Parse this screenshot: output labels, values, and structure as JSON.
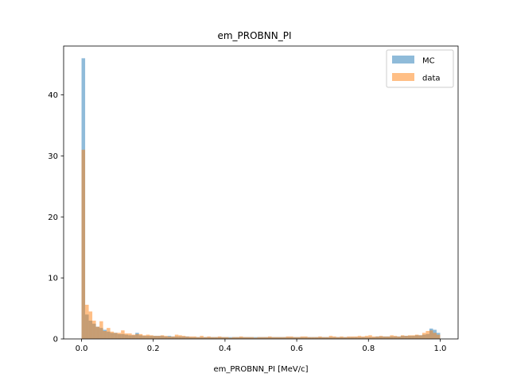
{
  "chart_data": {
    "type": "histogram",
    "title": "em_PROBNN_PI",
    "xlabel": "em_PROBNN_PI [MeV/c]",
    "ylabel": "",
    "xlim": [
      -0.05,
      1.05
    ],
    "ylim": [
      0,
      48
    ],
    "xticks": [
      0.0,
      0.2,
      0.4,
      0.6,
      0.8,
      1.0
    ],
    "xtick_labels": [
      "0.0",
      "0.2",
      "0.4",
      "0.6",
      "0.8",
      "1.0"
    ],
    "yticks": [
      0,
      10,
      20,
      30,
      40
    ],
    "ytick_labels": [
      "0",
      "10",
      "20",
      "30",
      "40"
    ],
    "bin_start": 0.0,
    "bin_width": 0.01,
    "grid": false,
    "legend_position": "upper right",
    "series": [
      {
        "name": "MC",
        "color": "#1f77b4",
        "alpha": 0.5,
        "values": [
          46,
          4.0,
          3.0,
          2.5,
          2.0,
          1.8,
          1.5,
          1.2,
          1.0,
          1.0,
          0.8,
          0.8,
          0.7,
          0.6,
          0.6,
          1.0,
          0.6,
          0.5,
          0.5,
          0.5,
          0.5,
          0.5,
          0.5,
          0.4,
          0.5,
          0.4,
          0.4,
          0.4,
          0.4,
          0.4,
          0.3,
          0.3,
          0.3,
          0.3,
          0.3,
          0.3,
          0.3,
          0.3,
          0.3,
          0.3,
          0.3,
          0.3,
          0.3,
          0.3,
          0.3,
          0.3,
          0.3,
          0.3,
          0.3,
          0.3,
          0.3,
          0.3,
          0.3,
          0.3,
          0.3,
          0.3,
          0.3,
          0.3,
          0.3,
          0.3,
          0.3,
          0.3,
          0.3,
          0.3,
          0.3,
          0.3,
          0.3,
          0.3,
          0.3,
          0.3,
          0.3,
          0.3,
          0.3,
          0.3,
          0.3,
          0.3,
          0.3,
          0.3,
          0.3,
          0.3,
          0.3,
          0.3,
          0.4,
          0.4,
          0.4,
          0.4,
          0.4,
          0.4,
          0.4,
          0.5,
          0.5,
          0.5,
          0.5,
          0.6,
          0.6,
          0.7,
          0.8,
          1.7,
          1.5,
          1.0
        ]
      },
      {
        "name": "data",
        "color": "#ff7f0e",
        "alpha": 0.5,
        "values": [
          31,
          5.6,
          4.5,
          3.0,
          2.0,
          2.9,
          1.3,
          1.8,
          1.2,
          1.0,
          1.0,
          1.4,
          0.9,
          0.9,
          0.7,
          0.8,
          0.8,
          0.6,
          0.7,
          0.6,
          0.5,
          0.5,
          0.6,
          0.5,
          0.4,
          0.4,
          0.7,
          0.6,
          0.5,
          0.4,
          0.4,
          0.4,
          0.3,
          0.5,
          0.3,
          0.4,
          0.3,
          0.3,
          0.4,
          0.3,
          0.3,
          0.2,
          0.3,
          0.3,
          0.4,
          0.3,
          0.3,
          0.3,
          0.2,
          0.3,
          0.3,
          0.3,
          0.4,
          0.3,
          0.3,
          0.3,
          0.3,
          0.4,
          0.4,
          0.3,
          0.3,
          0.4,
          0.4,
          0.3,
          0.3,
          0.3,
          0.4,
          0.3,
          0.3,
          0.5,
          0.4,
          0.3,
          0.4,
          0.3,
          0.4,
          0.4,
          0.4,
          0.5,
          0.4,
          0.5,
          0.6,
          0.4,
          0.4,
          0.5,
          0.4,
          0.4,
          0.6,
          0.5,
          0.4,
          0.6,
          0.5,
          0.6,
          0.6,
          0.7,
          0.6,
          1.0,
          1.3,
          1.4,
          1.0,
          0.7
        ]
      }
    ]
  }
}
